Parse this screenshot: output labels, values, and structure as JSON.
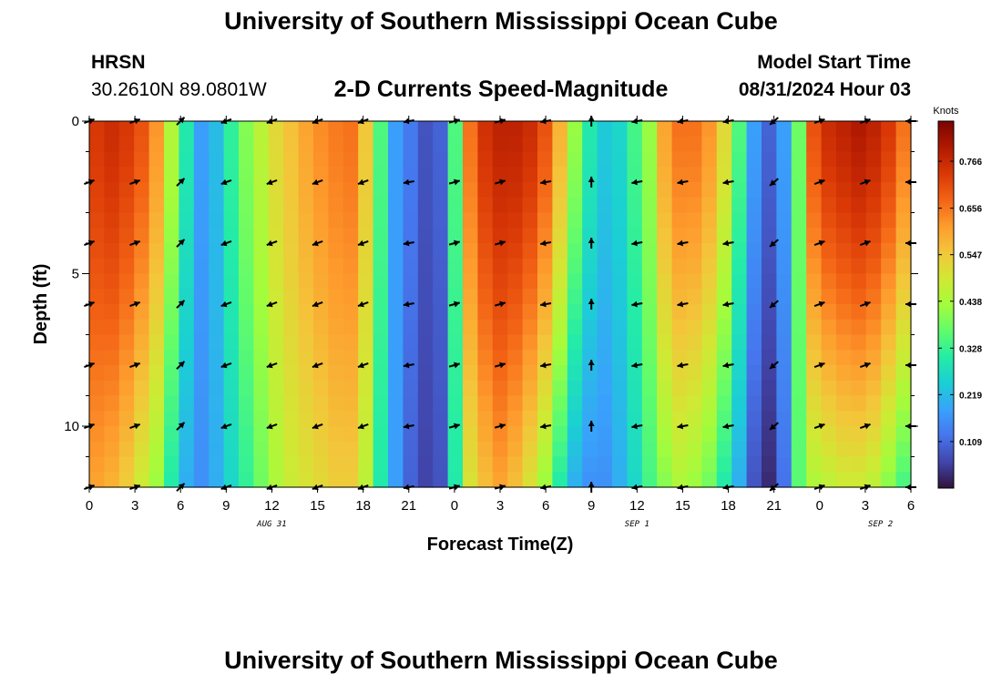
{
  "header": {
    "title": "University of Southern Mississippi Ocean Cube",
    "station": "HRSN",
    "coords": "30.2610N  89.0801W",
    "plot_title": "2-D Currents Speed-Magnitude",
    "model_label": "Model Start Time",
    "model_time": "08/31/2024 Hour 03"
  },
  "footer": {
    "title": "University of Southern Mississippi Ocean Cube"
  },
  "colors": {
    "colormap": [
      "#30123b",
      "#4145ab",
      "#4675ed",
      "#39a2fc",
      "#1bcfd4",
      "#24eca6",
      "#61fc6c",
      "#a4fc3b",
      "#d1e834",
      "#f3c63a",
      "#fe9b2d",
      "#f36315",
      "#d93806",
      "#b11901",
      "#7a0402"
    ]
  },
  "chart_data": {
    "type": "heatmap",
    "title": "2-D Currents Speed-Magnitude",
    "xlabel": "Forecast Time(Z)",
    "ylabel": "Depth (ft)",
    "x_hours": [
      0,
      1,
      2,
      3,
      4,
      5,
      6,
      7,
      8,
      9,
      10,
      11,
      12,
      13,
      14,
      15,
      16,
      17,
      18,
      19,
      20,
      21,
      22,
      23,
      24,
      25,
      26,
      27,
      28,
      29,
      30,
      31,
      32,
      33,
      34,
      35,
      36,
      37,
      38,
      39,
      40,
      41,
      42,
      43,
      44,
      45,
      46,
      47,
      48,
      49,
      50,
      51,
      52,
      53,
      54
    ],
    "xticks": [
      {
        "h": 0,
        "label": "0"
      },
      {
        "h": 3,
        "label": "3"
      },
      {
        "h": 6,
        "label": "6"
      },
      {
        "h": 9,
        "label": "9"
      },
      {
        "h": 12,
        "label": "12"
      },
      {
        "h": 15,
        "label": "15"
      },
      {
        "h": 18,
        "label": "18"
      },
      {
        "h": 21,
        "label": "21"
      },
      {
        "h": 24,
        "label": "0"
      },
      {
        "h": 27,
        "label": "3"
      },
      {
        "h": 30,
        "label": "6"
      },
      {
        "h": 33,
        "label": "9"
      },
      {
        "h": 36,
        "label": "12"
      },
      {
        "h": 39,
        "label": "15"
      },
      {
        "h": 42,
        "label": "18"
      },
      {
        "h": 45,
        "label": "21"
      },
      {
        "h": 48,
        "label": "0"
      },
      {
        "h": 51,
        "label": "3"
      },
      {
        "h": 54,
        "label": "6"
      }
    ],
    "date_labels": [
      {
        "h": 12,
        "label": "AUG 31"
      },
      {
        "h": 36,
        "label": "SEP 1"
      },
      {
        "h": 52,
        "label": "SEP 2"
      }
    ],
    "yticks": [
      0,
      5,
      10
    ],
    "ylim": [
      0,
      12
    ],
    "colorbar": {
      "unit": "Knots",
      "min": 0,
      "max": 0.86,
      "labels": [
        "0.766",
        "0.656",
        "0.547",
        "0.438",
        "0.328",
        "0.219",
        "0.109"
      ]
    },
    "speed_top": [
      0.74,
      0.76,
      0.74,
      0.7,
      0.62,
      0.45,
      0.3,
      0.18,
      0.22,
      0.32,
      0.4,
      0.46,
      0.52,
      0.56,
      0.6,
      0.63,
      0.65,
      0.66,
      0.55,
      0.35,
      0.18,
      0.13,
      0.08,
      0.1,
      0.35,
      0.66,
      0.75,
      0.78,
      0.78,
      0.76,
      0.7,
      0.58,
      0.42,
      0.3,
      0.24,
      0.26,
      0.34,
      0.42,
      0.6,
      0.66,
      0.66,
      0.62,
      0.52,
      0.35,
      0.18,
      0.1,
      0.18,
      0.38,
      0.7,
      0.76,
      0.78,
      0.8,
      0.78,
      0.74,
      0.66
    ],
    "speed_bottom": [
      0.6,
      0.58,
      0.54,
      0.48,
      0.42,
      0.3,
      0.2,
      0.16,
      0.2,
      0.26,
      0.32,
      0.38,
      0.44,
      0.48,
      0.5,
      0.52,
      0.54,
      0.54,
      0.46,
      0.3,
      0.18,
      0.1,
      0.06,
      0.08,
      0.3,
      0.5,
      0.56,
      0.6,
      0.56,
      0.5,
      0.42,
      0.3,
      0.2,
      0.16,
      0.16,
      0.2,
      0.26,
      0.34,
      0.4,
      0.44,
      0.42,
      0.38,
      0.3,
      0.2,
      0.08,
      0.03,
      0.12,
      0.36,
      0.44,
      0.46,
      0.48,
      0.48,
      0.46,
      0.4,
      0.34
    ],
    "vector_times": [
      0,
      3,
      6,
      9,
      12,
      15,
      18,
      21,
      24,
      27,
      30,
      33,
      36,
      39,
      42,
      45,
      48,
      51,
      54
    ],
    "vector_depths": [
      0,
      2,
      4,
      6,
      8,
      10,
      12
    ],
    "vector_angles_deg": [
      20,
      20,
      45,
      -160,
      -160,
      -160,
      -160,
      -170,
      15,
      15,
      -170,
      90,
      -170,
      -170,
      -170,
      -140,
      20,
      20,
      180
    ]
  }
}
